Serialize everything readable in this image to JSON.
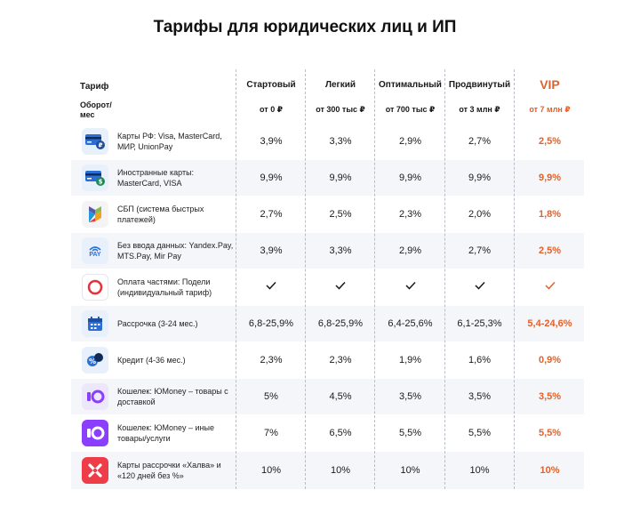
{
  "title": "Тарифы для юридических лиц и ИП",
  "header": {
    "tariff_label": "Тариф",
    "turnover_label": "Оборот/\nмес",
    "columns": [
      {
        "name": "Стартовый",
        "turnover": "от 0 ₽"
      },
      {
        "name": "Легкий",
        "turnover": "от 300 тыс ₽"
      },
      {
        "name": "Оптимальный",
        "turnover": "от 700 тыс ₽"
      },
      {
        "name": "Продвинутый",
        "turnover": "от 3 млн ₽"
      },
      {
        "name": "VIP",
        "turnover": "от 7 млн ₽"
      }
    ]
  },
  "colors": {
    "accent": "#e0622c",
    "band": "#f4f6fa"
  },
  "rows": [
    {
      "icon": "card-ruble-icon",
      "label": "Карты РФ: Visa, MasterCard, МИР, UnionPay",
      "values": [
        "3,9%",
        "3,3%",
        "2,9%",
        "2,7%",
        "2,5%"
      ]
    },
    {
      "icon": "card-dollar-icon",
      "label": "Иностранные карты: MasterCard, VISA",
      "values": [
        "9,9%",
        "9,9%",
        "9,9%",
        "9,9%",
        "9,9%"
      ]
    },
    {
      "icon": "sbp-icon",
      "label": "СБП (система быстрых платежей)",
      "values": [
        "2,7%",
        "2,5%",
        "2,3%",
        "2,0%",
        "1,8%"
      ]
    },
    {
      "icon": "pay-wireless-icon",
      "icon_text": "PAY",
      "label": "Без ввода данных: Yandex.Pay, MTS.Pay, Mir Pay",
      "values": [
        "3,9%",
        "3,3%",
        "2,9%",
        "2,7%",
        "2,5%"
      ]
    },
    {
      "icon": "podeli-ring-icon",
      "label": "Оплата частями: Подели (индивидуальный тариф)",
      "values": [
        "✓",
        "✓",
        "✓",
        "✓",
        "✓"
      ]
    },
    {
      "icon": "calendar-icon",
      "label": "Рассрочка (3-24 мес.)",
      "values": [
        "6,8-25,9%",
        "6,8-25,9%",
        "6,4-25,6%",
        "6,1-25,3%",
        "5,4-24,6%"
      ]
    },
    {
      "icon": "credit-icon",
      "label": "Кредит (4-36 мес.)",
      "values": [
        "2,3%",
        "2,3%",
        "1,9%",
        "1,6%",
        "0,9%"
      ]
    },
    {
      "icon": "yoomoney-light-icon",
      "label": "Кошелек: ЮMoney – товары с доставкой",
      "values": [
        "5%",
        "4,5%",
        "3,5%",
        "3,5%",
        "3,5%"
      ]
    },
    {
      "icon": "yoomoney-dark-icon",
      "label": "Кошелек: ЮMoney – иные товары/услуги",
      "values": [
        "7%",
        "6,5%",
        "5,5%",
        "5,5%",
        "5,5%"
      ]
    },
    {
      "icon": "halva-icon",
      "label": "Карты рассрочки «Халва» и «120 дней без %»",
      "values": [
        "10%",
        "10%",
        "10%",
        "10%",
        "10%"
      ]
    }
  ]
}
